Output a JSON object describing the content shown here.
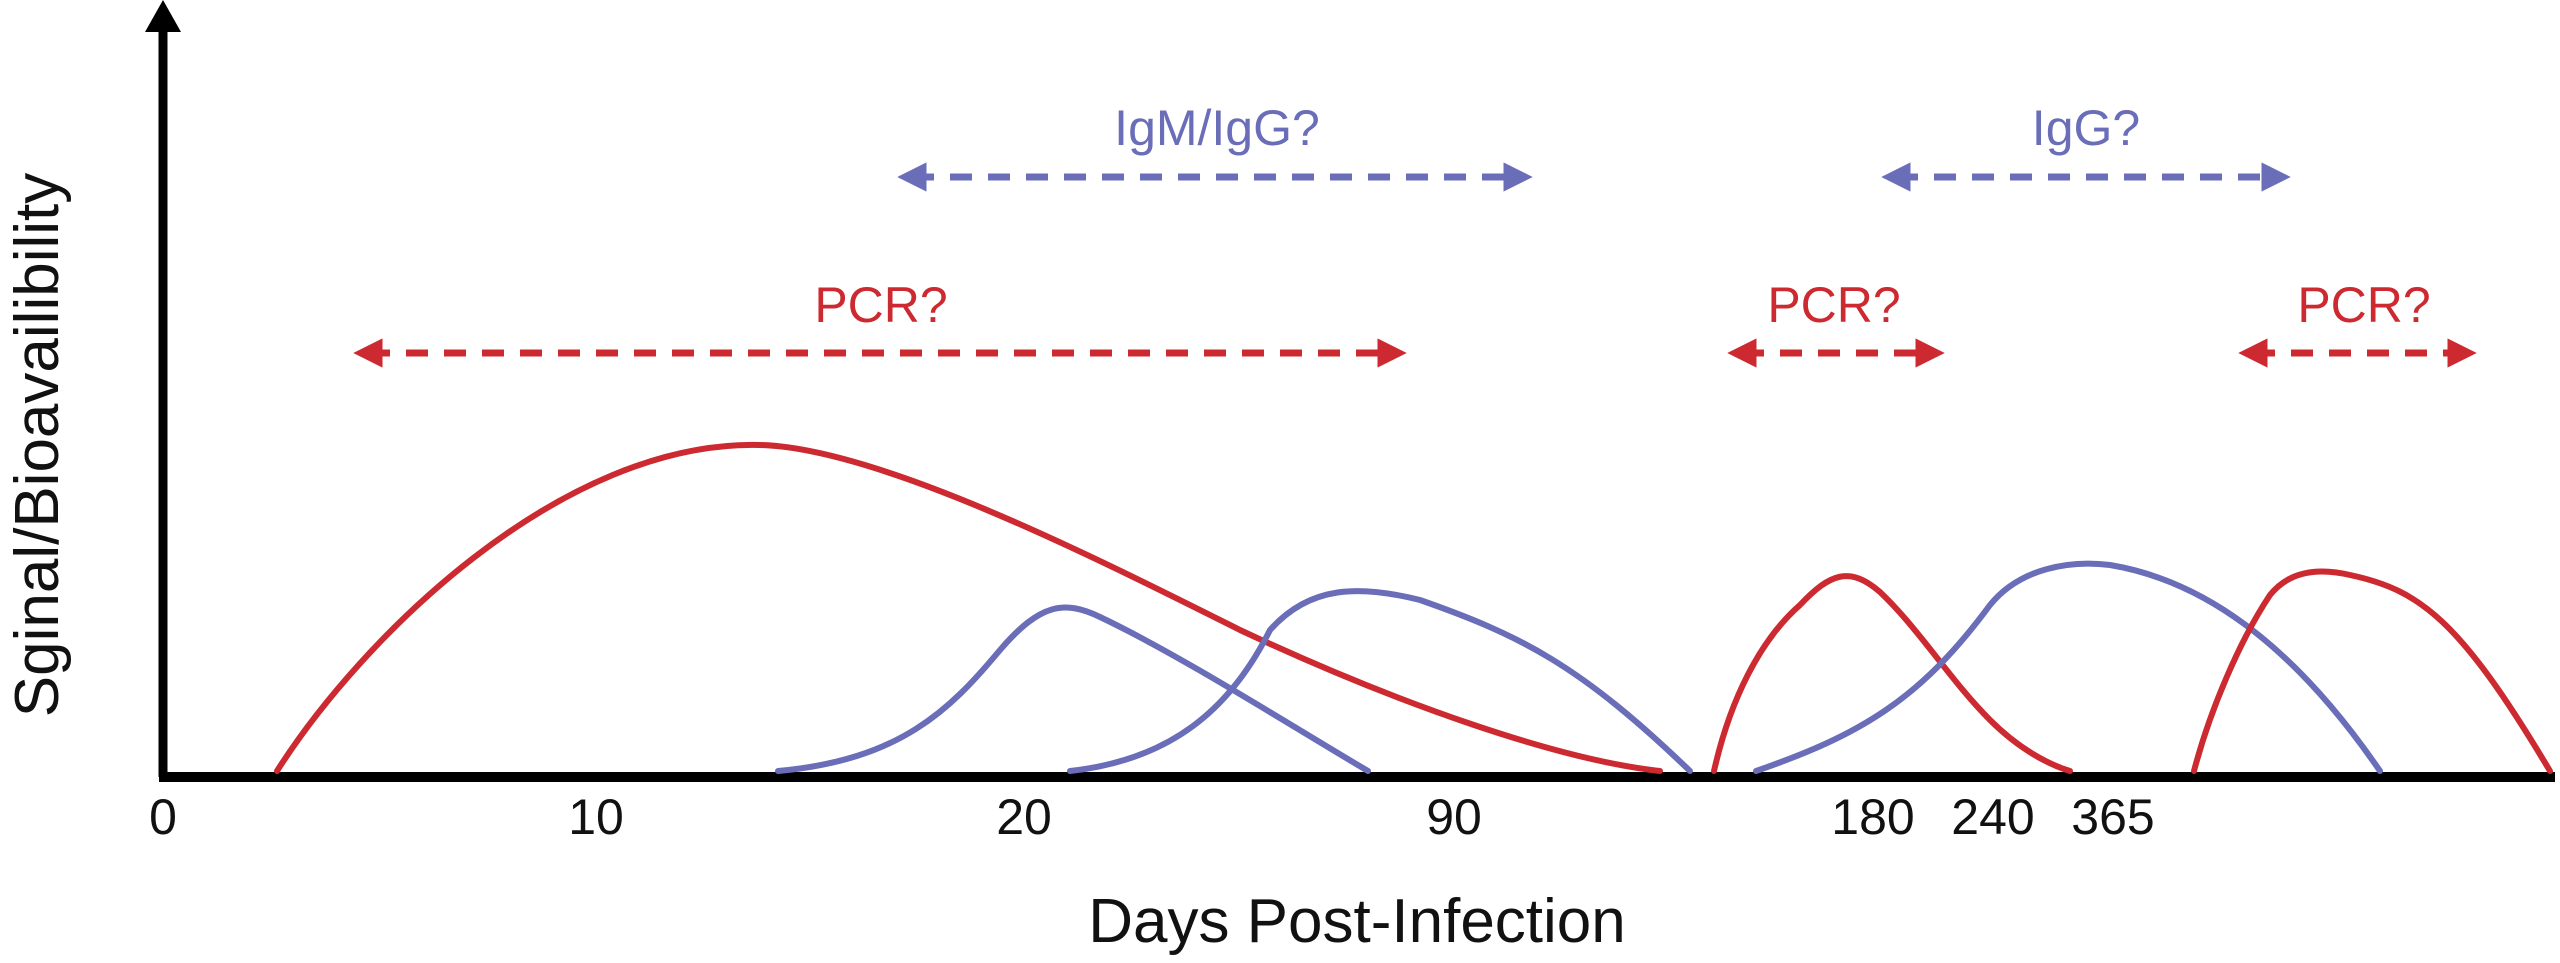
{
  "axes": {
    "y_title": "Sginal/Bioavailibility",
    "x_title": "Days Post-Infection",
    "x_ticks": [
      "0",
      "10",
      "20",
      "90",
      "180",
      "240",
      "365"
    ]
  },
  "colors": {
    "pcr": "#cc2a30",
    "antibody": "#6a6db8",
    "axis": "#000000"
  },
  "ranges": [
    {
      "id": "igm-igg",
      "label": "IgM/IgG?",
      "kind": "antibody"
    },
    {
      "id": "igg",
      "label": "IgG?",
      "kind": "antibody"
    },
    {
      "id": "pcr-1",
      "label": "PCR?",
      "kind": "pcr"
    },
    {
      "id": "pcr-2",
      "label": "PCR?",
      "kind": "pcr"
    },
    {
      "id": "pcr-3",
      "label": "PCR?",
      "kind": "pcr"
    }
  ],
  "curves": [
    {
      "id": "pcr-curve-1",
      "kind": "pcr"
    },
    {
      "id": "antibody-curve-1",
      "kind": "antibody"
    },
    {
      "id": "antibody-curve-2",
      "kind": "antibody"
    },
    {
      "id": "antibody-curve-3",
      "kind": "antibody"
    },
    {
      "id": "pcr-curve-2",
      "kind": "pcr"
    },
    {
      "id": "pcr-curve-3",
      "kind": "pcr"
    }
  ]
}
